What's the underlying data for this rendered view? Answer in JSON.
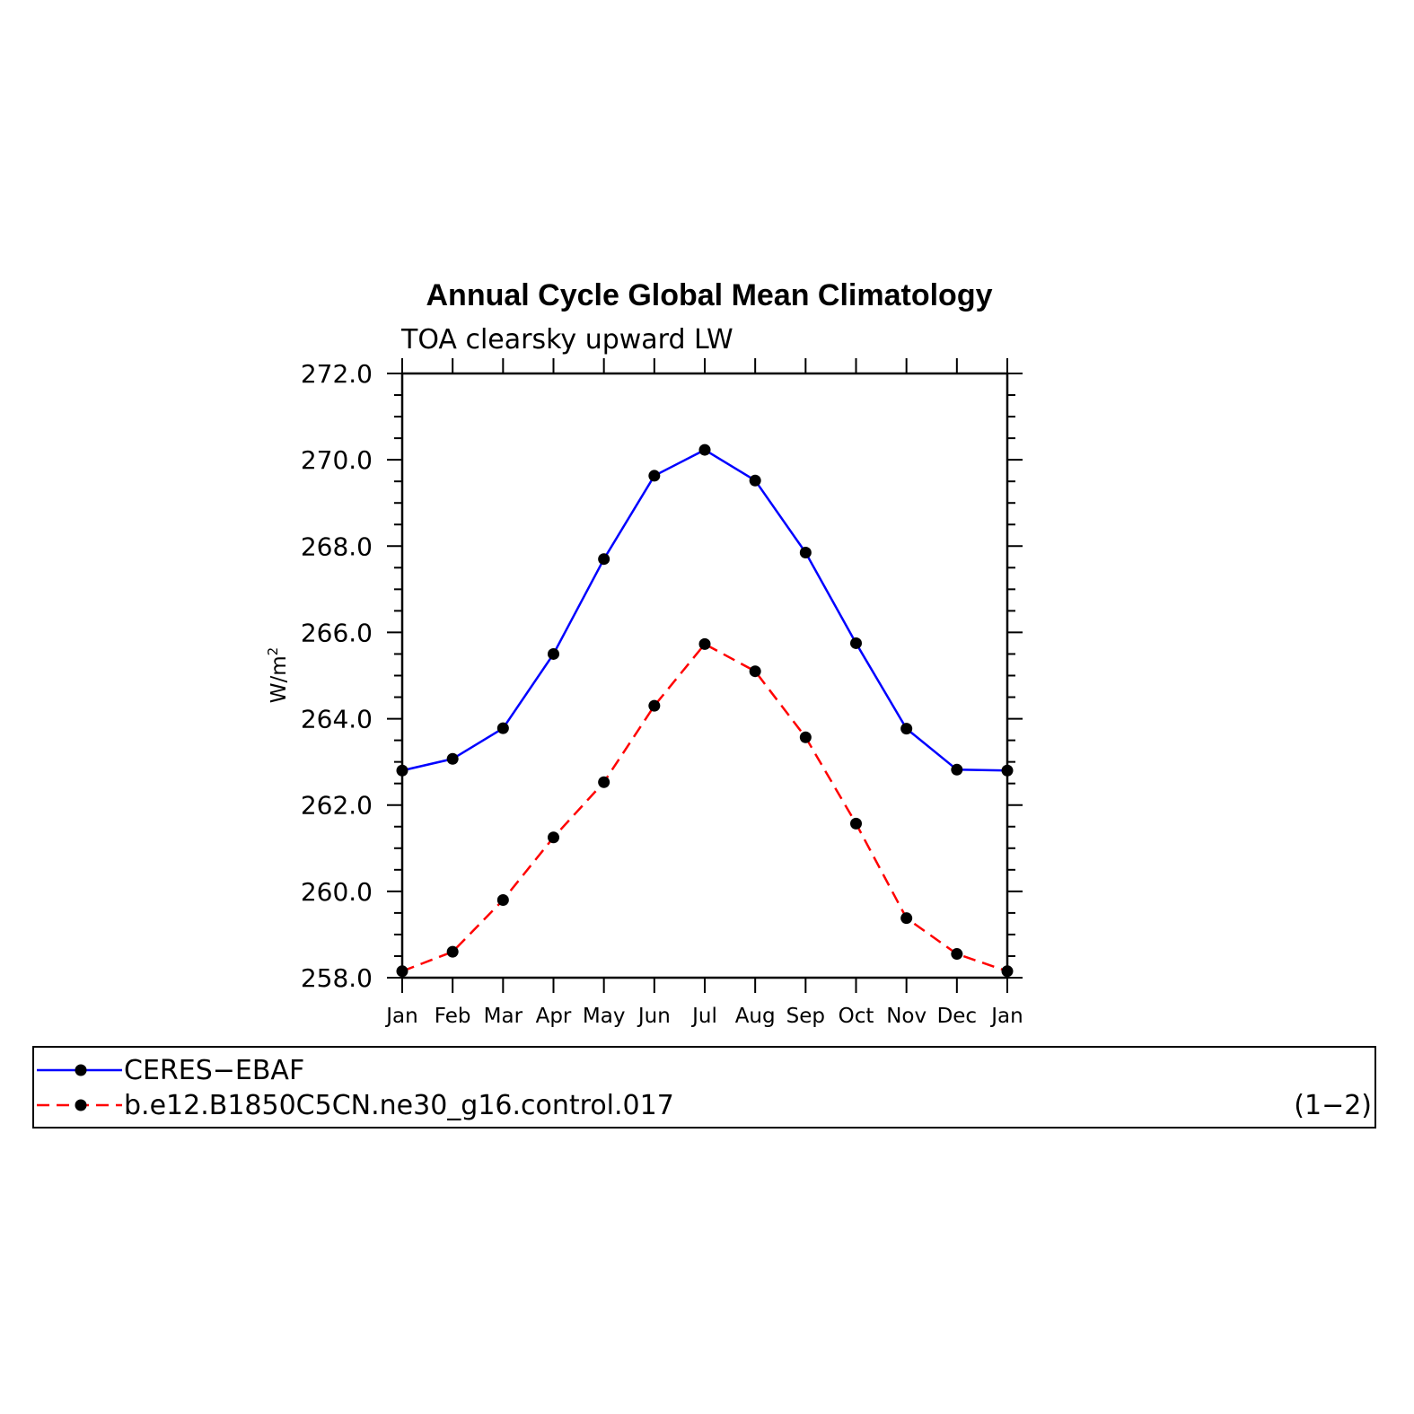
{
  "chart_data": {
    "type": "line",
    "title": "Annual Cycle Global Mean Climatology",
    "subtitle": "TOA clearsky upward LW",
    "ylabel_base": "W/m",
    "ylabel_sup": "2",
    "categories": [
      "Jan",
      "Feb",
      "Mar",
      "Apr",
      "May",
      "Jun",
      "Jul",
      "Aug",
      "Sep",
      "Oct",
      "Nov",
      "Dec",
      "Jan"
    ],
    "ylim": [
      258.0,
      272.0
    ],
    "yticks": [
      "258.0",
      "260.0",
      "262.0",
      "264.0",
      "266.0",
      "268.0",
      "270.0",
      "272.0"
    ],
    "grid": false,
    "series": [
      {
        "name": "CERES−EBAF",
        "color": "#0000ff",
        "dash": "solid",
        "values": [
          262.8,
          263.07,
          263.78,
          265.5,
          267.7,
          269.63,
          270.23,
          269.52,
          267.85,
          265.75,
          263.77,
          262.82,
          262.8
        ]
      },
      {
        "name": "b.e12.B1850C5CN.ne30_g16.control.017",
        "color": "#ff0000",
        "dash": "dashed",
        "values": [
          258.15,
          258.6,
          259.8,
          261.25,
          262.53,
          264.3,
          265.73,
          265.1,
          263.57,
          261.57,
          259.38,
          258.55,
          258.15
        ]
      }
    ],
    "legend_note": "(1−2)",
    "legend_position": "bottom"
  }
}
